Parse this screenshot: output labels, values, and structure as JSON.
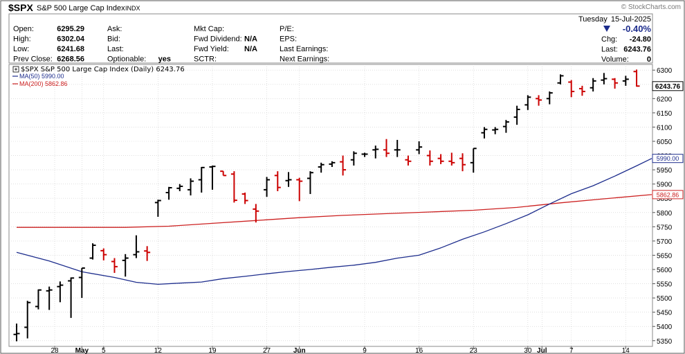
{
  "header": {
    "symbol": "$SPX",
    "name": "S&P 500 Large Cap Index",
    "exchange": "INDX",
    "watermark": "© StockCharts.com",
    "date_day": "Tuesday",
    "date": "15-Jul-2025",
    "change_pct": "-0.40%",
    "change_icon": "triangle-down-icon"
  },
  "quote": {
    "col1": [
      {
        "label": "Open:",
        "value": "6295.29"
      },
      {
        "label": "High:",
        "value": "6302.04"
      },
      {
        "label": "Low:",
        "value": "6241.68"
      },
      {
        "label": "Prev Close:",
        "value": "6268.56"
      }
    ],
    "col2": [
      {
        "label": "Ask:",
        "value": ""
      },
      {
        "label": "Bid:",
        "value": ""
      },
      {
        "label": "Last:",
        "value": ""
      },
      {
        "label": "Optionable:",
        "value": "yes"
      }
    ],
    "col3": [
      {
        "label": "Mkt Cap:",
        "value": ""
      },
      {
        "label": "Fwd Dividend:",
        "value": "N/A"
      },
      {
        "label": "Fwd Yield:",
        "value": "N/A"
      },
      {
        "label": "SCTR:",
        "value": ""
      }
    ],
    "col4": [
      {
        "label": "P/E:",
        "value": ""
      },
      {
        "label": "EPS:",
        "value": ""
      },
      {
        "label": "Last Earnings:",
        "value": ""
      },
      {
        "label": "Next Earnings:",
        "value": ""
      }
    ],
    "col5": [
      {
        "label": "Chg:",
        "value": "-24.80"
      },
      {
        "label": "Last:",
        "value": "6243.76"
      },
      {
        "label": "Volume:",
        "value": "0"
      }
    ]
  },
  "legend": {
    "main": "$SPX S&P 500 Large Cap Index (Daily) 6243.76",
    "ma50": "MA(50) 5990.00",
    "ma200": "MA(200) 5862.86"
  },
  "colors": {
    "up": "#000000",
    "down": "#cc0000",
    "ma50": "#1c2c8c",
    "ma200": "#cc2020",
    "grid": "#cccccc",
    "frame": "#555555"
  },
  "chart_data": {
    "type": "ohlc",
    "ylim": [
      5330,
      6320
    ],
    "y_ticks": [
      5350,
      5400,
      5450,
      5500,
      5550,
      5600,
      5650,
      5700,
      5750,
      5800,
      5850,
      5900,
      5950,
      6000,
      6050,
      6100,
      6150,
      6200,
      6250,
      6300
    ],
    "x_ticks": [
      {
        "label": "28",
        "at": 3.5
      },
      {
        "label": "May",
        "at": 6
      },
      {
        "label": "5",
        "at": 8
      },
      {
        "label": "12",
        "at": 13
      },
      {
        "label": "19",
        "at": 18
      },
      {
        "label": "27",
        "at": 23
      },
      {
        "label": "Jun",
        "at": 26
      },
      {
        "label": "9",
        "at": 32
      },
      {
        "label": "16",
        "at": 37
      },
      {
        "label": "23",
        "at": 42
      },
      {
        "label": "30",
        "at": 47
      },
      {
        "label": "Jul",
        "at": 48.3
      },
      {
        "label": "7",
        "at": 51
      },
      {
        "label": "14",
        "at": 56
      }
    ],
    "grid": true,
    "last_price_label": "6243.76",
    "ma50_label": "5990.00",
    "ma200_label": "5862.86",
    "ohlc": [
      {
        "o": 5372,
        "h": 5410,
        "l": 5348,
        "c": 5375
      },
      {
        "o": 5397,
        "h": 5490,
        "l": 5358,
        "c": 5484
      },
      {
        "o": 5470,
        "h": 5530,
        "l": 5460,
        "c": 5528
      },
      {
        "o": 5525,
        "h": 5540,
        "l": 5458,
        "c": 5528
      },
      {
        "o": 5540,
        "h": 5558,
        "l": 5485,
        "c": 5545
      },
      {
        "o": 5560,
        "h": 5572,
        "l": 5430,
        "c": 5570
      },
      {
        "o": 5572,
        "h": 5605,
        "l": 5500,
        "c": 5605
      },
      {
        "o": 5640,
        "h": 5692,
        "l": 5635,
        "c": 5685
      },
      {
        "o": 5666,
        "h": 5674,
        "l": 5632,
        "c": 5652
      },
      {
        "o": 5628,
        "h": 5640,
        "l": 5588,
        "c": 5610
      },
      {
        "o": 5632,
        "h": 5654,
        "l": 5575,
        "c": 5640
      },
      {
        "o": 5652,
        "h": 5720,
        "l": 5640,
        "c": 5662
      },
      {
        "o": 5665,
        "h": 5682,
        "l": 5630,
        "c": 5660
      },
      {
        "o": 5835,
        "h": 5845,
        "l": 5785,
        "c": 5842
      },
      {
        "o": 5870,
        "h": 5890,
        "l": 5845,
        "c": 5887
      },
      {
        "o": 5885,
        "h": 5900,
        "l": 5875,
        "c": 5892
      },
      {
        "o": 5880,
        "h": 5920,
        "l": 5860,
        "c": 5910
      },
      {
        "o": 5915,
        "h": 5960,
        "l": 5870,
        "c": 5958
      },
      {
        "o": 5960,
        "h": 5965,
        "l": 5880,
        "c": 5962
      },
      {
        "o": 5945,
        "h": 5945,
        "l": 5930,
        "c": 5930
      },
      {
        "o": 5935,
        "h": 5945,
        "l": 5835,
        "c": 5843
      },
      {
        "o": 5865,
        "h": 5870,
        "l": 5830,
        "c": 5842
      },
      {
        "o": 5812,
        "h": 5830,
        "l": 5765,
        "c": 5805
      },
      {
        "o": 5880,
        "h": 5925,
        "l": 5855,
        "c": 5915
      },
      {
        "o": 5930,
        "h": 5945,
        "l": 5875,
        "c": 5888
      },
      {
        "o": 5912,
        "h": 5942,
        "l": 5890,
        "c": 5915
      },
      {
        "o": 5915,
        "h": 5922,
        "l": 5840,
        "c": 5910
      },
      {
        "o": 5920,
        "h": 5945,
        "l": 5865,
        "c": 5940
      },
      {
        "o": 5960,
        "h": 5975,
        "l": 5940,
        "c": 5968
      },
      {
        "o": 5970,
        "h": 5980,
        "l": 5960,
        "c": 5975
      },
      {
        "o": 5978,
        "h": 6000,
        "l": 5930,
        "c": 5950
      },
      {
        "o": 5985,
        "h": 6015,
        "l": 5965,
        "c": 6008
      },
      {
        "o": 6005,
        "h": 6010,
        "l": 5995,
        "c": 6005
      },
      {
        "o": 6020,
        "h": 6035,
        "l": 5990,
        "c": 6022
      },
      {
        "o": 6020,
        "h": 6058,
        "l": 5995,
        "c": 6008
      },
      {
        "o": 6020,
        "h": 6055,
        "l": 5995,
        "c": 6020
      },
      {
        "o": 5985,
        "h": 6000,
        "l": 5965,
        "c": 5980
      },
      {
        "o": 6020,
        "h": 6050,
        "l": 6005,
        "c": 6030
      },
      {
        "o": 6000,
        "h": 6018,
        "l": 5965,
        "c": 5980
      },
      {
        "o": 5990,
        "h": 6005,
        "l": 5970,
        "c": 5980
      },
      {
        "o": 5980,
        "h": 6010,
        "l": 5965,
        "c": 5975
      },
      {
        "o": 5990,
        "h": 6008,
        "l": 5945,
        "c": 5968
      },
      {
        "o": 5975,
        "h": 6025,
        "l": 5940,
        "c": 6025
      },
      {
        "o": 6080,
        "h": 6100,
        "l": 6060,
        "c": 6092
      },
      {
        "o": 6090,
        "h": 6100,
        "l": 6075,
        "c": 6092
      },
      {
        "o": 6102,
        "h": 6125,
        "l": 6080,
        "c": 6118
      },
      {
        "o": 6135,
        "h": 6175,
        "l": 6108,
        "c": 6162
      },
      {
        "o": 6178,
        "h": 6212,
        "l": 6160,
        "c": 6205
      },
      {
        "o": 6200,
        "h": 6212,
        "l": 6175,
        "c": 6195
      },
      {
        "o": 6200,
        "h": 6225,
        "l": 6180,
        "c": 6220
      },
      {
        "o": 6255,
        "h": 6285,
        "l": 6250,
        "c": 6280
      },
      {
        "o": 6258,
        "h": 6265,
        "l": 6205,
        "c": 6225
      },
      {
        "o": 6235,
        "h": 6245,
        "l": 6210,
        "c": 6225
      },
      {
        "o": 6238,
        "h": 6272,
        "l": 6225,
        "c": 6262
      },
      {
        "o": 6265,
        "h": 6290,
        "l": 6250,
        "c": 6270
      },
      {
        "o": 6268,
        "h": 6272,
        "l": 6235,
        "c": 6255
      },
      {
        "o": 6262,
        "h": 6280,
        "l": 6245,
        "c": 6268
      },
      {
        "o": 6295,
        "h": 6302,
        "l": 6242,
        "c": 6244
      }
    ],
    "ma50": [
      [
        0,
        5660
      ],
      [
        3,
        5630
      ],
      [
        6,
        5592
      ],
      [
        9,
        5572
      ],
      [
        11,
        5555
      ],
      [
        13,
        5548
      ],
      [
        15,
        5552
      ],
      [
        17,
        5556
      ],
      [
        19,
        5568
      ],
      [
        21,
        5576
      ],
      [
        23,
        5585
      ],
      [
        25,
        5593
      ],
      [
        27,
        5600
      ],
      [
        29,
        5608
      ],
      [
        31,
        5615
      ],
      [
        33,
        5625
      ],
      [
        35,
        5640
      ],
      [
        37,
        5650
      ],
      [
        39,
        5676
      ],
      [
        41,
        5706
      ],
      [
        43,
        5732
      ],
      [
        45,
        5761
      ],
      [
        47,
        5792
      ],
      [
        49,
        5830
      ],
      [
        51,
        5866
      ],
      [
        53,
        5894
      ],
      [
        55,
        5928
      ],
      [
        57,
        5964
      ],
      [
        58.4,
        5990
      ]
    ],
    "ma200": [
      [
        0,
        5748
      ],
      [
        5,
        5748
      ],
      [
        10,
        5748
      ],
      [
        14,
        5752
      ],
      [
        18,
        5762
      ],
      [
        22,
        5772
      ],
      [
        26,
        5782
      ],
      [
        30,
        5790
      ],
      [
        34,
        5796
      ],
      [
        38,
        5802
      ],
      [
        42,
        5808
      ],
      [
        46,
        5818
      ],
      [
        50,
        5834
      ],
      [
        54,
        5848
      ],
      [
        58.4,
        5863
      ]
    ]
  }
}
